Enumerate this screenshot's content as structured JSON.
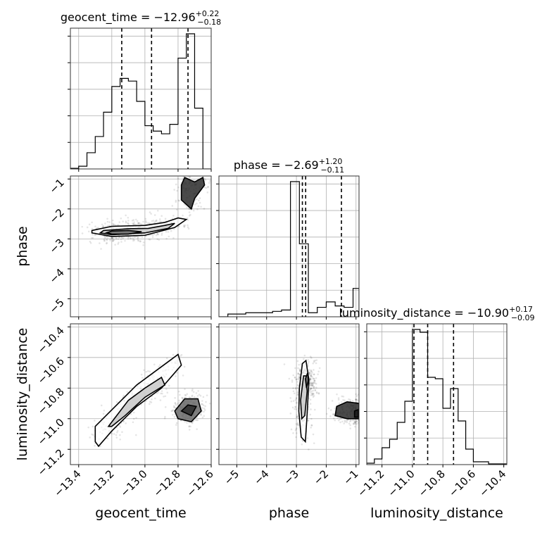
{
  "chart_data": {
    "type": "corner",
    "parameters": [
      "geocent_time",
      "phase",
      "luminosity_distance"
    ],
    "titles": {
      "geocent_time": {
        "lhs": "geocent_time = −12.96",
        "plus": "+0.22",
        "minus": "−0.18"
      },
      "phase": {
        "lhs": "phase = −2.69",
        "plus": "+1.20",
        "minus": "−0.11"
      },
      "luminosity_distance": {
        "lhs": "luminosity_distance = −10.90",
        "plus": "+0.17",
        "minus": "−0.09"
      }
    },
    "axes": {
      "geocent_time": {
        "range": [
          -13.45,
          -12.6
        ],
        "ticks": [
          -13.4,
          -13.2,
          -13.0,
          -12.8,
          -12.6
        ],
        "tick_labels": [
          "−13.4",
          "−13.2",
          "−13.0",
          "−12.8",
          "−12.6"
        ]
      },
      "phase": {
        "range": [
          -5.6,
          -0.9
        ],
        "ticks": [
          -5,
          -4,
          -3,
          -2,
          -1
        ],
        "tick_labels": [
          "−5",
          "−4",
          "−3",
          "−2",
          "−1"
        ]
      },
      "luminosity_distance": {
        "range": [
          -11.3,
          -10.38
        ],
        "ticks": [
          -11.2,
          -11.0,
          -10.8,
          -10.6,
          -10.4
        ],
        "tick_labels": [
          "−11.2",
          "−11.0",
          "−10.8",
          "−10.6",
          "−10.4"
        ]
      }
    },
    "histograms": {
      "geocent_time": {
        "bin_edges": [
          -13.45,
          -13.4,
          -13.35,
          -13.3,
          -13.25,
          -13.2,
          -13.15,
          -13.1,
          -13.05,
          -13.0,
          -12.95,
          -12.9,
          -12.85,
          -12.8,
          -12.75,
          -12.7,
          -12.65,
          -12.6
        ],
        "counts": [
          0.005,
          0.02,
          0.12,
          0.24,
          0.42,
          0.61,
          0.67,
          0.65,
          0.5,
          0.32,
          0.28,
          0.26,
          0.33,
          0.82,
          1.0,
          0.45,
          0.0
        ]
      },
      "phase": {
        "bin_edges": [
          -5.6,
          -5.3,
          -5.0,
          -4.7,
          -4.4,
          -4.1,
          -3.8,
          -3.5,
          -3.2,
          -2.9,
          -2.6,
          -2.3,
          -2.0,
          -1.7,
          -1.4,
          -1.1,
          -0.9
        ],
        "counts": [
          0.0,
          0.02,
          0.02,
          0.03,
          0.03,
          0.03,
          0.04,
          0.05,
          1.0,
          0.54,
          0.03,
          0.07,
          0.11,
          0.08,
          0.07,
          0.21
        ]
      },
      "luminosity_distance": {
        "bin_edges": [
          -11.3,
          -11.25,
          -11.2,
          -11.15,
          -11.1,
          -11.05,
          -11.0,
          -10.95,
          -10.9,
          -10.85,
          -10.8,
          -10.75,
          -10.7,
          -10.65,
          -10.6,
          -10.55,
          -10.5,
          -10.45,
          -10.38
        ],
        "counts": [
          0.01,
          0.04,
          0.12,
          0.18,
          0.3,
          0.45,
          0.96,
          0.94,
          0.62,
          0.61,
          0.4,
          0.54,
          0.31,
          0.11,
          0.02,
          0.02,
          0.005,
          0.005
        ]
      }
    },
    "quantiles": {
      "geocent_time": [
        -13.14,
        -12.96,
        -12.74
      ],
      "phase": [
        -2.8,
        -2.69,
        -1.49
      ],
      "luminosity_distance": [
        -10.99,
        -10.9,
        -10.73
      ]
    },
    "contours": [
      {
        "x": "geocent_time",
        "y": "phase",
        "levels": [
          [
            [
              -13.32,
              -2.72
            ],
            [
              -13.2,
              -2.58
            ],
            [
              -13.0,
              -2.55
            ],
            [
              -12.88,
              -2.45
            ],
            [
              -12.8,
              -2.3
            ],
            [
              -12.75,
              -2.35
            ],
            [
              -12.82,
              -2.62
            ],
            [
              -13.0,
              -2.88
            ],
            [
              -13.2,
              -2.92
            ],
            [
              -13.32,
              -2.8
            ]
          ],
          [
            [
              -13.25,
              -2.72
            ],
            [
              -13.1,
              -2.66
            ],
            [
              -12.98,
              -2.65
            ],
            [
              -12.88,
              -2.55
            ],
            [
              -12.82,
              -2.48
            ],
            [
              -12.86,
              -2.65
            ],
            [
              -13.0,
              -2.8
            ],
            [
              -13.2,
              -2.86
            ],
            [
              -13.27,
              -2.8
            ]
          ],
          [
            [
              -13.2,
              -2.74
            ],
            [
              -13.1,
              -2.72
            ],
            [
              -13.02,
              -2.76
            ],
            [
              -13.1,
              -2.84
            ],
            [
              -13.2,
              -2.84
            ],
            [
              -13.23,
              -2.79
            ]
          ],
          [
            [
              -12.76,
              -0.95
            ],
            [
              -12.7,
              -1.1
            ],
            [
              -12.65,
              -0.95
            ],
            [
              -12.64,
              -1.2
            ],
            [
              -12.7,
              -1.65
            ],
            [
              -12.72,
              -2.0
            ],
            [
              -12.78,
              -1.7
            ],
            [
              -12.78,
              -1.2
            ]
          ]
        ]
      },
      {
        "x": "phase",
        "y": "luminosity_distance",
        "levels": [
          [
            [
              -2.8,
              -10.64
            ],
            [
              -2.68,
              -10.62
            ],
            [
              -2.58,
              -10.75
            ],
            [
              -2.65,
              -11.0
            ],
            [
              -2.7,
              -11.15
            ],
            [
              -2.84,
              -11.12
            ],
            [
              -2.92,
              -10.95
            ],
            [
              -2.9,
              -10.8
            ]
          ],
          [
            [
              -2.76,
              -10.72
            ],
            [
              -2.68,
              -10.72
            ],
            [
              -2.64,
              -10.82
            ],
            [
              -2.72,
              -10.98
            ],
            [
              -2.82,
              -11.0
            ],
            [
              -2.86,
              -10.88
            ]
          ],
          [
            [
              -2.62,
              -10.7
            ],
            [
              -2.6,
              -10.75
            ],
            [
              -2.66,
              -10.8
            ],
            [
              -2.7,
              -10.74
            ]
          ],
          [
            [
              -1.65,
              -10.92
            ],
            [
              -1.3,
              -10.89
            ],
            [
              -0.9,
              -10.9
            ],
            [
              -0.9,
              -11.0
            ],
            [
              -1.3,
              -11.0
            ],
            [
              -1.7,
              -10.98
            ]
          ],
          [
            [
              -1.05,
              -10.95
            ],
            [
              -0.92,
              -10.94
            ],
            [
              -0.92,
              -10.99
            ],
            [
              -1.05,
              -10.99
            ]
          ]
        ]
      },
      {
        "x": "geocent_time",
        "y": "luminosity_distance",
        "levels": [
          [
            [
              -13.3,
              -11.15
            ],
            [
              -13.3,
              -11.05
            ],
            [
              -13.05,
              -10.78
            ],
            [
              -12.95,
              -10.7
            ],
            [
              -12.85,
              -10.62
            ],
            [
              -12.8,
              -10.58
            ],
            [
              -12.78,
              -10.65
            ],
            [
              -12.9,
              -10.8
            ],
            [
              -13.05,
              -10.92
            ],
            [
              -13.2,
              -11.08
            ],
            [
              -13.28,
              -11.18
            ]
          ],
          [
            [
              -13.22,
              -11.05
            ],
            [
              -13.1,
              -10.88
            ],
            [
              -13.0,
              -10.8
            ],
            [
              -12.9,
              -10.73
            ],
            [
              -12.88,
              -10.78
            ],
            [
              -13.0,
              -10.86
            ],
            [
              -13.12,
              -10.98
            ],
            [
              -13.2,
              -11.05
            ]
          ],
          [
            [
              -12.82,
              -10.95
            ],
            [
              -12.76,
              -10.87
            ],
            [
              -12.68,
              -10.87
            ],
            [
              -12.66,
              -10.95
            ],
            [
              -12.72,
              -11.02
            ],
            [
              -12.8,
              -11.0
            ]
          ],
          [
            [
              -12.78,
              -10.95
            ],
            [
              -12.74,
              -10.91
            ],
            [
              -12.69,
              -10.92
            ],
            [
              -12.72,
              -10.98
            ]
          ]
        ]
      }
    ]
  }
}
